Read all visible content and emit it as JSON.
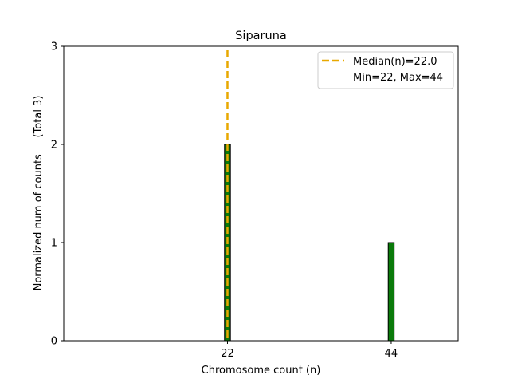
{
  "chart_data": {
    "type": "bar",
    "title": "Siparuna",
    "xlabel": "Chromosome count (n)",
    "ylabel": "Normalized num of counts     (Total 3)",
    "x": [
      22,
      44
    ],
    "values": [
      2,
      1
    ],
    "xticks": [
      22,
      44
    ],
    "xtick_labels": [
      "22",
      "44"
    ],
    "yticks": [
      0,
      1,
      2,
      3
    ],
    "ytick_labels": [
      "0",
      "1",
      "2",
      "3"
    ],
    "xlim": [
      0,
      53
    ],
    "ylim": [
      0,
      3
    ],
    "bar_width": 0.8,
    "median": 22.0,
    "legend": {
      "placement": "top-right",
      "entries": [
        "Median(n)=22.0",
        "Min=22, Max=44"
      ]
    },
    "grid": false,
    "colors": {
      "bar_fill": "#0a7a0a",
      "bar_edge": "#000000",
      "median_line": "#e8a800"
    }
  }
}
